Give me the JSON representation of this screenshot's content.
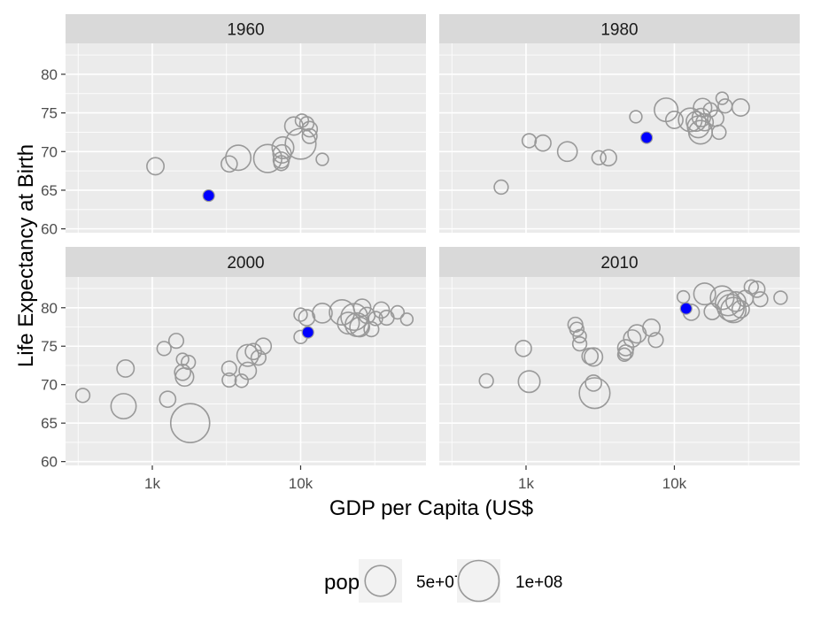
{
  "chart_data": {
    "type": "scatter",
    "layout": "facet_wrap 2x2",
    "x_scale": "log10",
    "xlabel": "GDP per Capita (US$",
    "ylabel": "Life Expectancy at Birth",
    "x_ticks": [
      {
        "value": 1000,
        "label": "1k"
      },
      {
        "value": 10000,
        "label": "10k"
      }
    ],
    "y_ticks": [
      60,
      65,
      70,
      75,
      80
    ],
    "xlim": [
      260,
      70000
    ],
    "ylim": [
      59.5,
      84
    ],
    "grid": true,
    "point_color": "#999999",
    "highlight_color": "#0000ff",
    "legend": {
      "title": "pop",
      "position": "bottom",
      "entries": [
        {
          "label": "5e+07",
          "pop": 50000000
        },
        {
          "label": "1e+08",
          "pop": 100000000
        }
      ]
    },
    "facets": [
      {
        "label": "1960",
        "highlight": {
          "gdp": 2400,
          "life": 64.3
        },
        "points": [
          {
            "gdp": 1050,
            "life": 68.1,
            "pop": 10000000
          },
          {
            "gdp": 3300,
            "life": 68.4,
            "pop": 8000000
          },
          {
            "gdp": 3800,
            "life": 69.2,
            "pop": 30000000
          },
          {
            "gdp": 6000,
            "life": 69.1,
            "pop": 40000000
          },
          {
            "gdp": 7400,
            "life": 68.5,
            "pop": 6000000
          },
          {
            "gdp": 7400,
            "life": 68.9,
            "pop": 8000000
          },
          {
            "gdp": 7500,
            "life": 69.7,
            "pop": 12000000
          },
          {
            "gdp": 7600,
            "life": 70.5,
            "pop": 20000000
          },
          {
            "gdp": 9000,
            "life": 73.3,
            "pop": 12000000
          },
          {
            "gdp": 10000,
            "life": 71.0,
            "pop": 50000000
          },
          {
            "gdp": 10200,
            "life": 74.0,
            "pop": 4000000
          },
          {
            "gdp": 11000,
            "life": 73.6,
            "pop": 5000000
          },
          {
            "gdp": 11500,
            "life": 72.9,
            "pop": 7000000
          },
          {
            "gdp": 11500,
            "life": 72.0,
            "pop": 6000000
          },
          {
            "gdp": 14000,
            "life": 69.0,
            "pop": 3000000
          }
        ]
      },
      {
        "label": "1980",
        "highlight": {
          "gdp": 6500,
          "life": 71.8
        },
        "points": [
          {
            "gdp": 680,
            "life": 65.4,
            "pop": 5000000
          },
          {
            "gdp": 1050,
            "life": 71.4,
            "pop": 5000000
          },
          {
            "gdp": 1300,
            "life": 71.1,
            "pop": 8000000
          },
          {
            "gdp": 1900,
            "life": 70.0,
            "pop": 15000000
          },
          {
            "gdp": 3100,
            "life": 69.2,
            "pop": 5000000
          },
          {
            "gdp": 3600,
            "life": 69.2,
            "pop": 8000000
          },
          {
            "gdp": 5500,
            "life": 74.5,
            "pop": 3000000
          },
          {
            "gdp": 8800,
            "life": 75.4,
            "pop": 25000000
          },
          {
            "gdp": 10000,
            "life": 74.1,
            "pop": 10000000
          },
          {
            "gdp": 12800,
            "life": 74.1,
            "pop": 25000000
          },
          {
            "gdp": 14000,
            "life": 73.9,
            "pop": 15000000
          },
          {
            "gdp": 14500,
            "life": 73.2,
            "pop": 20000000
          },
          {
            "gdp": 15000,
            "life": 72.5,
            "pop": 25000000
          },
          {
            "gdp": 15200,
            "life": 74.4,
            "pop": 12000000
          },
          {
            "gdp": 15500,
            "life": 75.7,
            "pop": 12000000
          },
          {
            "gdp": 16000,
            "life": 73.8,
            "pop": 10000000
          },
          {
            "gdp": 17500,
            "life": 75.4,
            "pop": 5000000
          },
          {
            "gdp": 19000,
            "life": 74.3,
            "pop": 8000000
          },
          {
            "gdp": 20000,
            "life": 72.5,
            "pop": 5000000
          },
          {
            "gdp": 21000,
            "life": 76.9,
            "pop": 3000000
          },
          {
            "gdp": 22000,
            "life": 75.9,
            "pop": 5000000
          },
          {
            "gdp": 28000,
            "life": 75.7,
            "pop": 10000000
          }
        ]
      },
      {
        "label": "2000",
        "highlight": {
          "gdp": 11200,
          "life": 76.8
        },
        "points": [
          {
            "gdp": 340,
            "life": 68.6,
            "pop": 5000000
          },
          {
            "gdp": 660,
            "life": 72.1,
            "pop": 10000000
          },
          {
            "gdp": 640,
            "life": 67.2,
            "pop": 30000000
          },
          {
            "gdp": 1200,
            "life": 74.7,
            "pop": 5000000
          },
          {
            "gdp": 1270,
            "life": 68.1,
            "pop": 8000000
          },
          {
            "gdp": 1450,
            "life": 75.7,
            "pop": 6000000
          },
          {
            "gdp": 1600,
            "life": 73.3,
            "pop": 3000000
          },
          {
            "gdp": 1600,
            "life": 71.6,
            "pop": 8000000
          },
          {
            "gdp": 1650,
            "life": 71.0,
            "pop": 12000000
          },
          {
            "gdp": 1750,
            "life": 72.9,
            "pop": 5000000
          },
          {
            "gdp": 1800,
            "life": 65.0,
            "pop": 90000000
          },
          {
            "gdp": 3300,
            "life": 72.1,
            "pop": 6000000
          },
          {
            "gdp": 3300,
            "life": 70.6,
            "pop": 5000000
          },
          {
            "gdp": 4000,
            "life": 70.5,
            "pop": 4000000
          },
          {
            "gdp": 4400,
            "life": 73.8,
            "pop": 20000000
          },
          {
            "gdp": 4400,
            "life": 71.8,
            "pop": 10000000
          },
          {
            "gdp": 4800,
            "life": 74.3,
            "pop": 8000000
          },
          {
            "gdp": 5200,
            "life": 73.5,
            "pop": 6000000
          },
          {
            "gdp": 5600,
            "life": 75.0,
            "pop": 8000000
          },
          {
            "gdp": 10000,
            "life": 79.1,
            "pop": 4000000
          },
          {
            "gdp": 10000,
            "life": 76.2,
            "pop": 4000000
          },
          {
            "gdp": 11000,
            "life": 78.7,
            "pop": 8000000
          },
          {
            "gdp": 14000,
            "life": 79.3,
            "pop": 15000000
          },
          {
            "gdp": 19000,
            "life": 79.4,
            "pop": 30000000
          },
          {
            "gdp": 21000,
            "life": 78.0,
            "pop": 20000000
          },
          {
            "gdp": 23000,
            "life": 78.8,
            "pop": 35000000
          },
          {
            "gdp": 24000,
            "life": 77.8,
            "pop": 25000000
          },
          {
            "gdp": 25000,
            "life": 77.5,
            "pop": 15000000
          },
          {
            "gdp": 26000,
            "life": 80.0,
            "pop": 10000000
          },
          {
            "gdp": 28000,
            "life": 79.0,
            "pop": 8000000
          },
          {
            "gdp": 30000,
            "life": 77.2,
            "pop": 6000000
          },
          {
            "gdp": 32000,
            "life": 78.6,
            "pop": 5000000
          },
          {
            "gdp": 35000,
            "life": 79.7,
            "pop": 8000000
          },
          {
            "gdp": 38000,
            "life": 78.7,
            "pop": 6000000
          },
          {
            "gdp": 45000,
            "life": 79.4,
            "pop": 4000000
          },
          {
            "gdp": 52000,
            "life": 78.5,
            "pop": 3000000
          }
        ]
      },
      {
        "label": "2010",
        "highlight": {
          "gdp": 12000,
          "life": 79.9
        },
        "points": [
          {
            "gdp": 540,
            "life": 70.5,
            "pop": 5000000
          },
          {
            "gdp": 960,
            "life": 74.7,
            "pop": 8000000
          },
          {
            "gdp": 1050,
            "life": 70.4,
            "pop": 20000000
          },
          {
            "gdp": 2150,
            "life": 77.8,
            "pop": 6000000
          },
          {
            "gdp": 2200,
            "life": 77.2,
            "pop": 5000000
          },
          {
            "gdp": 2300,
            "life": 76.3,
            "pop": 4000000
          },
          {
            "gdp": 2300,
            "life": 75.3,
            "pop": 5000000
          },
          {
            "gdp": 2700,
            "life": 73.7,
            "pop": 8000000
          },
          {
            "gdp": 2850,
            "life": 73.6,
            "pop": 12000000
          },
          {
            "gdp": 2850,
            "life": 70.2,
            "pop": 8000000
          },
          {
            "gdp": 2900,
            "life": 68.9,
            "pop": 50000000
          },
          {
            "gdp": 4600,
            "life": 73.9,
            "pop": 4000000
          },
          {
            "gdp": 4700,
            "life": 74.2,
            "pop": 6000000
          },
          {
            "gdp": 4700,
            "life": 74.8,
            "pop": 8000000
          },
          {
            "gdp": 5200,
            "life": 76.0,
            "pop": 10000000
          },
          {
            "gdp": 5600,
            "life": 76.6,
            "pop": 12000000
          },
          {
            "gdp": 7000,
            "life": 77.4,
            "pop": 10000000
          },
          {
            "gdp": 7500,
            "life": 75.8,
            "pop": 6000000
          },
          {
            "gdp": 11500,
            "life": 81.4,
            "pop": 3000000
          },
          {
            "gdp": 13000,
            "life": 79.4,
            "pop": 8000000
          },
          {
            "gdp": 16000,
            "life": 81.8,
            "pop": 20000000
          },
          {
            "gdp": 18000,
            "life": 79.5,
            "pop": 8000000
          },
          {
            "gdp": 21000,
            "life": 81.3,
            "pop": 25000000
          },
          {
            "gdp": 23000,
            "life": 80.6,
            "pop": 30000000
          },
          {
            "gdp": 24000,
            "life": 80.0,
            "pop": 35000000
          },
          {
            "gdp": 25000,
            "life": 79.7,
            "pop": 30000000
          },
          {
            "gdp": 26000,
            "life": 80.8,
            "pop": 15000000
          },
          {
            "gdp": 28000,
            "life": 79.8,
            "pop": 10000000
          },
          {
            "gdp": 30000,
            "life": 81.2,
            "pop": 8000000
          },
          {
            "gdp": 33000,
            "life": 82.7,
            "pop": 5000000
          },
          {
            "gdp": 36000,
            "life": 82.4,
            "pop": 8000000
          },
          {
            "gdp": 38000,
            "life": 81.1,
            "pop": 6000000
          },
          {
            "gdp": 52000,
            "life": 81.3,
            "pop": 4000000
          }
        ]
      }
    ]
  }
}
